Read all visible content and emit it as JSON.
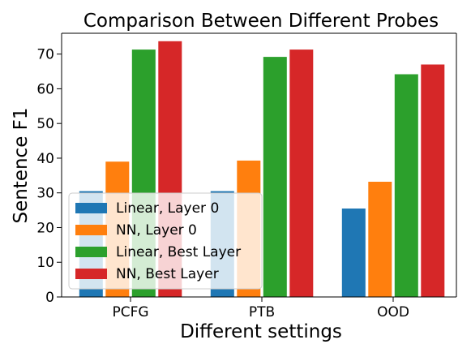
{
  "chart_data": {
    "type": "bar",
    "title": "Comparison Between Different Probes",
    "xlabel": "Different settings",
    "ylabel": "Sentence F1",
    "categories": [
      "PCFG",
      "PTB",
      "OOD"
    ],
    "series": [
      {
        "name": "Linear, Layer 0",
        "color": "#1f77b4",
        "values": [
          30.5,
          30.5,
          25.5
        ]
      },
      {
        "name": "NN, Layer 0",
        "color": "#ff7f0e",
        "values": [
          39.0,
          39.3,
          33.2
        ]
      },
      {
        "name": "Linear, Best Layer",
        "color": "#2ca02c",
        "values": [
          71.3,
          69.2,
          64.2
        ]
      },
      {
        "name": "NN, Best Layer",
        "color": "#d62728",
        "values": [
          73.7,
          71.3,
          67.0
        ]
      }
    ],
    "ylim": [
      0,
      76
    ],
    "yticks": [
      0,
      10,
      20,
      30,
      40,
      50,
      60,
      70
    ],
    "grid": false,
    "legend_position": "lower-left"
  }
}
